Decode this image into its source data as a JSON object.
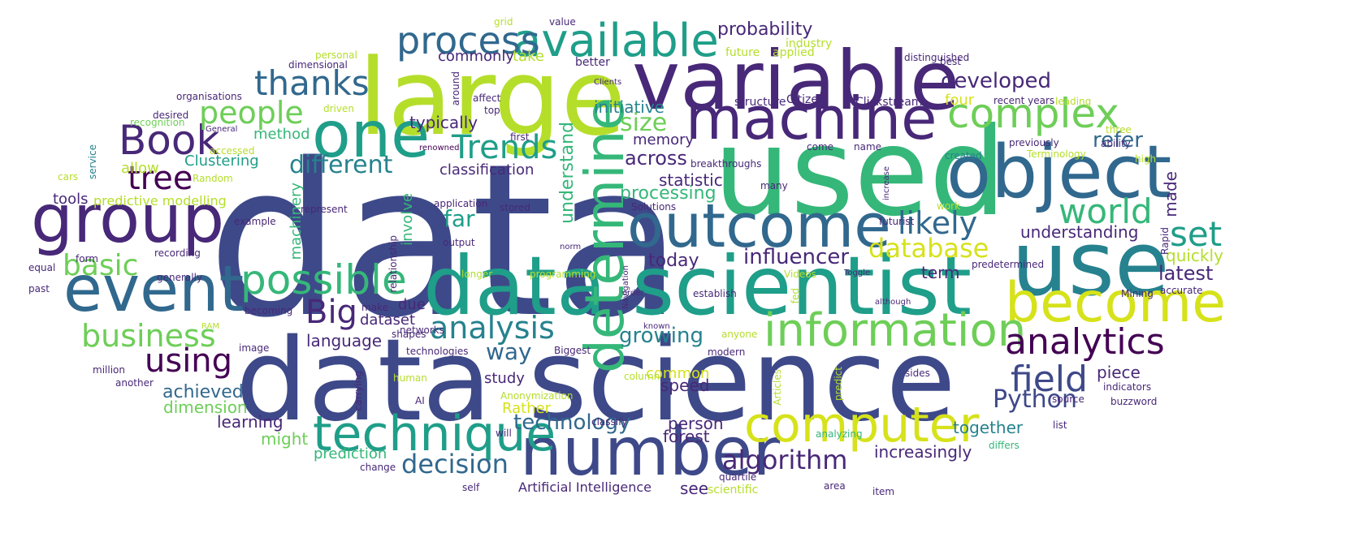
{
  "palette": {
    "c1": "#3e4989",
    "c2": "#31688e",
    "c3": "#26828e",
    "c4": "#1f9e89",
    "c5": "#35b779",
    "c6": "#6ece58",
    "c7": "#b5de2b",
    "c8": "#440154",
    "c9": "#482878",
    "c10": "#d6e21a"
  },
  "words": [
    {
      "t": "data",
      "c": "c1"
    },
    {
      "t": "data science",
      "c": "c1"
    },
    {
      "t": "used",
      "c": "c5"
    },
    {
      "t": "large",
      "c": "c7"
    },
    {
      "t": "variable",
      "c": "c9"
    },
    {
      "t": "data scientist",
      "c": "c4"
    },
    {
      "t": "use",
      "c": "c3"
    },
    {
      "t": "object",
      "c": "c2"
    },
    {
      "t": "machine",
      "c": "c9"
    },
    {
      "t": "group",
      "c": "c9"
    },
    {
      "t": "event",
      "c": "c2"
    },
    {
      "t": "one",
      "c": "c4"
    },
    {
      "t": "outcome",
      "c": "c2"
    },
    {
      "t": "number",
      "c": "c1"
    },
    {
      "t": "become",
      "c": "c10"
    },
    {
      "t": "computer",
      "c": "c10"
    },
    {
      "t": "technique",
      "c": "c4"
    },
    {
      "t": "information",
      "c": "c6"
    },
    {
      "t": "available",
      "c": "c4"
    },
    {
      "t": "complex",
      "c": "c6"
    },
    {
      "t": "possible",
      "c": "c5"
    },
    {
      "t": "determine",
      "c": "c5"
    },
    {
      "t": "Book",
      "c": "c9"
    },
    {
      "t": "process",
      "c": "c2"
    },
    {
      "t": "analytics",
      "c": "c8"
    },
    {
      "t": "thanks",
      "c": "c2"
    },
    {
      "t": "world",
      "c": "c5"
    },
    {
      "t": "tree",
      "c": "c8"
    },
    {
      "t": "set",
      "c": "c4"
    },
    {
      "t": "field",
      "c": "c1"
    },
    {
      "t": "business",
      "c": "c6"
    },
    {
      "t": "using",
      "c": "c8"
    },
    {
      "t": "likely",
      "c": "c2"
    },
    {
      "t": "Trends",
      "c": "c4"
    },
    {
      "t": "analysis",
      "c": "c3"
    },
    {
      "t": "Big",
      "c": "c9"
    },
    {
      "t": "people",
      "c": "c6"
    },
    {
      "t": "basic",
      "c": "c6"
    },
    {
      "t": "database",
      "c": "c10"
    },
    {
      "t": "algorithm",
      "c": "c9"
    },
    {
      "t": "Python",
      "c": "c1"
    },
    {
      "t": "decision",
      "c": "c2"
    },
    {
      "t": "different",
      "c": "c3"
    },
    {
      "t": "size",
      "c": "c6"
    },
    {
      "t": "technology",
      "c": "c2"
    },
    {
      "t": "influencer",
      "c": "c9"
    },
    {
      "t": "developed",
      "c": "c9"
    },
    {
      "t": "refer",
      "c": "c2"
    },
    {
      "t": "way",
      "c": "c2"
    },
    {
      "t": "growing",
      "c": "c3"
    },
    {
      "t": "across",
      "c": "c9"
    },
    {
      "t": "understand",
      "c": "c5"
    },
    {
      "t": "far",
      "c": "c4"
    },
    {
      "t": "probability",
      "c": "c9"
    },
    {
      "t": "latest",
      "c": "c9"
    },
    {
      "t": "today",
      "c": "c9"
    },
    {
      "t": "made",
      "c": "c9"
    },
    {
      "t": "processing",
      "c": "c5"
    },
    {
      "t": "Clustering",
      "c": "c4"
    },
    {
      "t": "classification",
      "c": "c9"
    },
    {
      "t": "statistic",
      "c": "c9"
    },
    {
      "t": "understanding",
      "c": "c9"
    },
    {
      "t": "memory",
      "c": "c9"
    },
    {
      "t": "quickly",
      "c": "c7"
    },
    {
      "t": "commonly",
      "c": "c9"
    },
    {
      "t": "speed",
      "c": "c9"
    },
    {
      "t": "language",
      "c": "c9"
    },
    {
      "t": "dataset",
      "c": "c9"
    },
    {
      "t": "achieved",
      "c": "c2"
    },
    {
      "t": "dimension",
      "c": "c6"
    },
    {
      "t": "learning",
      "c": "c9"
    },
    {
      "t": "initiative",
      "c": "c3"
    },
    {
      "t": "typically",
      "c": "c9"
    },
    {
      "t": "person",
      "c": "c9"
    },
    {
      "t": "forest",
      "c": "c9"
    },
    {
      "t": "might",
      "c": "c6"
    },
    {
      "t": "increasingly",
      "c": "c9"
    },
    {
      "t": "together",
      "c": "c3"
    },
    {
      "t": "piece",
      "c": "c9"
    },
    {
      "t": "term",
      "c": "c9"
    },
    {
      "t": "involve",
      "c": "c5"
    },
    {
      "t": "machinery",
      "c": "c5"
    },
    {
      "t": "study",
      "c": "c9"
    },
    {
      "t": "method",
      "c": "c5"
    },
    {
      "t": "tools",
      "c": "c9"
    },
    {
      "t": "allow",
      "c": "c7"
    },
    {
      "t": "take",
      "c": "c7"
    },
    {
      "t": "four",
      "c": "c10"
    },
    {
      "t": "Rather",
      "c": "c10"
    },
    {
      "t": "common",
      "c": "c10"
    },
    {
      "t": "prediction",
      "c": "c5"
    },
    {
      "t": "due",
      "c": "c9"
    },
    {
      "t": "predictive modelling",
      "c": "c7"
    },
    {
      "t": "Artificial Intelligence",
      "c": "c9"
    },
    {
      "t": "see",
      "c": "c9"
    },
    {
      "t": "scientific",
      "c": "c7"
    },
    {
      "t": "Clickstream",
      "c": "c9"
    },
    {
      "t": "structure",
      "c": "c9"
    },
    {
      "t": "Citizen",
      "c": "c9"
    },
    {
      "t": "applied",
      "c": "c7"
    },
    {
      "t": "future",
      "c": "c7"
    },
    {
      "t": "industry",
      "c": "c7"
    },
    {
      "t": "better",
      "c": "c9"
    },
    {
      "t": "value",
      "c": "c9"
    },
    {
      "t": "grid",
      "c": "c7"
    },
    {
      "t": "personal",
      "c": "c7"
    },
    {
      "t": "dimensional",
      "c": "c9"
    },
    {
      "t": "organisations",
      "c": "c9"
    },
    {
      "t": "desired",
      "c": "c9"
    },
    {
      "t": "recognition",
      "c": "c6"
    },
    {
      "t": "General",
      "c": "c9"
    },
    {
      "t": "accessed",
      "c": "c7"
    },
    {
      "t": "Random",
      "c": "c7"
    },
    {
      "t": "service",
      "c": "c3"
    },
    {
      "t": "cars",
      "c": "c7"
    },
    {
      "t": "driven",
      "c": "c7"
    },
    {
      "t": "top",
      "c": "c9"
    },
    {
      "t": "affect",
      "c": "c9"
    },
    {
      "t": "first",
      "c": "c9"
    },
    {
      "t": "renowned",
      "c": "c8"
    },
    {
      "t": "around",
      "c": "c9"
    },
    {
      "t": "Clients",
      "c": "c9"
    },
    {
      "t": "application",
      "c": "c9"
    },
    {
      "t": "stored",
      "c": "c9"
    },
    {
      "t": "represent",
      "c": "c9"
    },
    {
      "t": "example",
      "c": "c9"
    },
    {
      "t": "output",
      "c": "c9"
    },
    {
      "t": "relationship",
      "c": "c9"
    },
    {
      "t": "recording",
      "c": "c9"
    },
    {
      "t": "form",
      "c": "c9"
    },
    {
      "t": "equal",
      "c": "c9"
    },
    {
      "t": "generally",
      "c": "c9"
    },
    {
      "t": "past",
      "c": "c9"
    },
    {
      "t": "becoming",
      "c": "c9"
    },
    {
      "t": "make",
      "c": "c9"
    },
    {
      "t": "networks",
      "c": "c9"
    },
    {
      "t": "RAM",
      "c": "c7"
    },
    {
      "t": "image",
      "c": "c9"
    },
    {
      "t": "million",
      "c": "c9"
    },
    {
      "t": "another",
      "c": "c9"
    },
    {
      "t": "technologies",
      "c": "c9"
    },
    {
      "t": "shapes",
      "c": "c9"
    },
    {
      "t": "Biggest",
      "c": "c9"
    },
    {
      "t": "human",
      "c": "c7"
    },
    {
      "t": "carrying",
      "c": "c9"
    },
    {
      "t": "AI",
      "c": "c9"
    },
    {
      "t": "Anonymization",
      "c": "c7"
    },
    {
      "t": "classify",
      "c": "c9"
    },
    {
      "t": "will",
      "c": "c9"
    },
    {
      "t": "change",
      "c": "c9"
    },
    {
      "t": "self",
      "c": "c9"
    },
    {
      "t": "longer",
      "c": "c7"
    },
    {
      "t": "programming",
      "c": "c7"
    },
    {
      "t": "Navigation",
      "c": "c9"
    },
    {
      "t": "known",
      "c": "c9"
    },
    {
      "t": "modern",
      "c": "c9"
    },
    {
      "t": "anyone",
      "c": "c7"
    },
    {
      "t": "establish",
      "c": "c9"
    },
    {
      "t": "Videos",
      "c": "c7"
    },
    {
      "t": "Toggle",
      "c": "c9"
    },
    {
      "t": "order",
      "c": "c9"
    },
    {
      "t": "fed",
      "c": "c7"
    },
    {
      "t": "norm",
      "c": "c9"
    },
    {
      "t": "Solutions",
      "c": "c9"
    },
    {
      "t": "breakthroughs",
      "c": "c9"
    },
    {
      "t": "many",
      "c": "c9"
    },
    {
      "t": "come",
      "c": "c9"
    },
    {
      "t": "name",
      "c": "c9"
    },
    {
      "t": "increase",
      "c": "c9"
    },
    {
      "t": "futurist",
      "c": "c9"
    },
    {
      "t": "work",
      "c": "c7"
    },
    {
      "t": "predetermined",
      "c": "c9"
    },
    {
      "t": "although",
      "c": "c9"
    },
    {
      "t": "Rapid",
      "c": "c9"
    },
    {
      "t": "Mining",
      "c": "c9"
    },
    {
      "t": "accurate",
      "c": "c9"
    },
    {
      "t": "recent years",
      "c": "c9"
    },
    {
      "t": "leading",
      "c": "c7"
    },
    {
      "t": "three",
      "c": "c7"
    },
    {
      "t": "ability",
      "c": "c9"
    },
    {
      "t": "previously",
      "c": "c9"
    },
    {
      "t": "Terminology",
      "c": "c7"
    },
    {
      "t": "high",
      "c": "c7"
    },
    {
      "t": "created",
      "c": "c3"
    },
    {
      "t": "distinguished",
      "c": "c9"
    },
    {
      "t": "best",
      "c": "c9"
    },
    {
      "t": "predict",
      "c": "c7"
    },
    {
      "t": "Articles",
      "c": "c7"
    },
    {
      "t": "column",
      "c": "c7"
    },
    {
      "t": "sides",
      "c": "c9"
    },
    {
      "t": "source",
      "c": "c9"
    },
    {
      "t": "indicators",
      "c": "c9"
    },
    {
      "t": "buzzword",
      "c": "c9"
    },
    {
      "t": "list",
      "c": "c9"
    },
    {
      "t": "differs",
      "c": "c5"
    },
    {
      "t": "analyzing",
      "c": "c5"
    },
    {
      "t": "quartile",
      "c": "c9"
    },
    {
      "t": "area",
      "c": "c9"
    },
    {
      "t": "item",
      "c": "c9"
    },
    {
      "t": "Practice",
      "c": "c9"
    }
  ]
}
